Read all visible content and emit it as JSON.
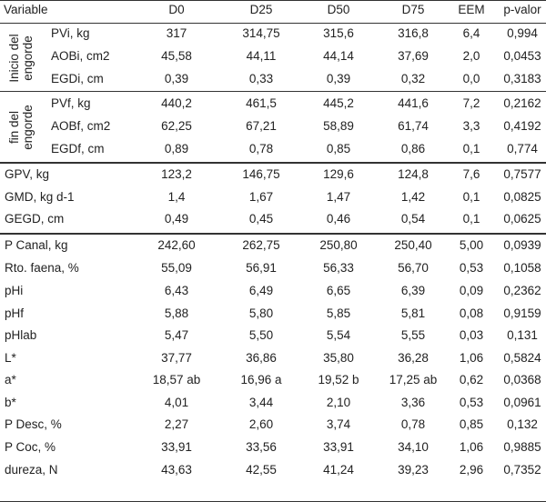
{
  "header": [
    "Variable",
    "D0",
    "D25",
    "D50",
    "D75",
    "EEM",
    "p-valor"
  ],
  "groups": [
    {
      "line1": "Inicio del",
      "line2": "engorde"
    },
    {
      "line1": "fin del",
      "line2": "engorde"
    }
  ],
  "rows": [
    {
      "label": "PVi, kg",
      "values": [
        "317",
        "314,75",
        "315,6",
        "316,8",
        "6,4",
        "0,994"
      ]
    },
    {
      "label": "AOBi, cm2",
      "values": [
        "45,58",
        "44,11",
        "44,14",
        "37,69",
        "2,0",
        "0,0453"
      ]
    },
    {
      "label": "EGDi, cm",
      "values": [
        "0,39",
        "0,33",
        "0,39",
        "0,32",
        "0,0",
        "0,3183"
      ]
    },
    {
      "label": "PVf, kg",
      "values": [
        "440,2",
        "461,5",
        "445,2",
        "441,6",
        "7,2",
        "0,2162"
      ]
    },
    {
      "label": "AOBf, cm2",
      "values": [
        "62,25",
        "67,21",
        "58,89",
        "61,74",
        "3,3",
        "0,4192"
      ]
    },
    {
      "label": "EGDf, cm",
      "values": [
        "0,89",
        "0,78",
        "0,85",
        "0,86",
        "0,1",
        "0,774"
      ]
    },
    {
      "label": "GPV, kg",
      "values": [
        "123,2",
        "146,75",
        "129,6",
        "124,8",
        "7,6",
        "0,7577"
      ]
    },
    {
      "label": "GMD, kg d-1",
      "values": [
        "1,4",
        "1,67",
        "1,47",
        "1,42",
        "0,1",
        "0,0825"
      ]
    },
    {
      "label": "GEGD, cm",
      "values": [
        "0,49",
        "0,45",
        "0,46",
        "0,54",
        "0,1",
        "0,0625"
      ]
    },
    {
      "label": "P Canal, kg",
      "values": [
        "242,60",
        "262,75",
        "250,80",
        "250,40",
        "5,00",
        "0,0939"
      ]
    },
    {
      "label": "Rto. faena, %",
      "values": [
        "55,09",
        "56,91",
        "56,33",
        "56,70",
        "0,53",
        "0,1058"
      ]
    },
    {
      "label": "pHi",
      "values": [
        "6,43",
        "6,49",
        "6,65",
        "6,39",
        "0,09",
        "0,2362"
      ]
    },
    {
      "label": "pHf",
      "values": [
        "5,88",
        "5,80",
        "5,85",
        "5,81",
        "0,08",
        "0,9159"
      ]
    },
    {
      "label": "pHlab",
      "values": [
        "5,47",
        "5,50",
        "5,54",
        "5,55",
        "0,03",
        "0,131"
      ]
    },
    {
      "label": "L*",
      "values": [
        "37,77",
        "36,86",
        "35,80",
        "36,28",
        "1,06",
        "0,5824"
      ]
    },
    {
      "label": "a*",
      "values": [
        "18,57 ab",
        "16,96 a",
        "19,52 b",
        "17,25 ab",
        "0,62",
        "0,0368"
      ]
    },
    {
      "label": "b*",
      "values": [
        "4,01",
        "3,44",
        "2,10",
        "3,36",
        "0,53",
        "0,0961"
      ]
    },
    {
      "label": "P Desc, %",
      "values": [
        "2,27",
        "2,60",
        "3,74",
        "0,78",
        "0,85",
        "0,132"
      ]
    },
    {
      "label": "P Coc, %",
      "values": [
        "33,91",
        "33,56",
        "33,91",
        "34,10",
        "1,06",
        "0,9885"
      ]
    },
    {
      "label": "dureza, N",
      "values": [
        "43,63",
        "42,55",
        "41,24",
        "39,23",
        "2,96",
        "0,7352"
      ]
    }
  ]
}
